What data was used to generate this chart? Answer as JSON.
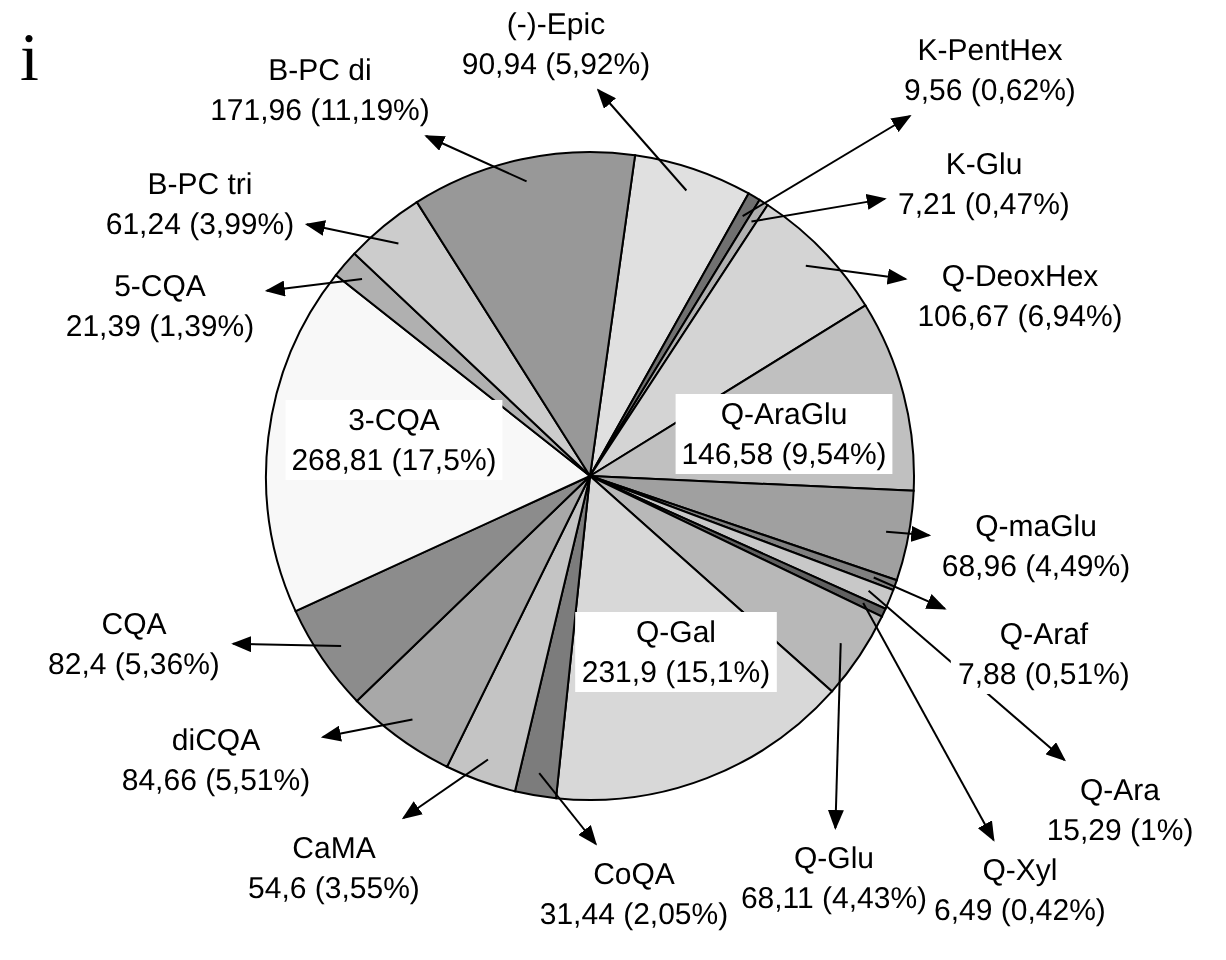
{
  "chart_data": {
    "type": "pie",
    "categories": [
      "(-)-Epic",
      "K-PentHex",
      "K-Glu",
      "Q-DeoxHex",
      "Q-AraGlu",
      "Q-maGlu",
      "Q-Araf",
      "Q-Ara",
      "Q-Xyl",
      "Q-Glu",
      "Q-Gal",
      "CoQA",
      "CaMA",
      "diCQA",
      "CQA",
      "3-CQA",
      "5-CQA",
      "B-PC tri",
      "B-PC di"
    ],
    "values": [
      90.94,
      9.56,
      7.21,
      106.67,
      146.58,
      68.96,
      7.88,
      15.29,
      6.49,
      68.11,
      231.9,
      31.44,
      54.6,
      84.66,
      82.4,
      268.81,
      21.39,
      61.24,
      171.96
    ],
    "value_labels": [
      "90,94 (5,92%)",
      "9,56 (0,62%)",
      "7,21 (0,47%)",
      "106,67 (6,94%)",
      "146,58 (9,54%)",
      "68,96 (4,49%)",
      "7,88 (0,51%)",
      "15,29 (1%)",
      "6,49 (0,42%)",
      "68,11 (4,43%)",
      "231,9 (15,1%)",
      "31,44 (2,05%)",
      "54,6 (3,55%)",
      "84,66 (5,51%)",
      "82,4 (5,36%)",
      "268,81 (17,5%)",
      "21,39 (1,39%)",
      "61,24 (3,99%)",
      "171,96 (11,19%)"
    ],
    "colors": [
      "#e0e0e0",
      "#707070",
      "#b0b0b0",
      "#d4d4d4",
      "#c0c0c0",
      "#a0a0a0",
      "#808080",
      "#c8c8c8",
      "#606060",
      "#b8b8b8",
      "#d8d8d8",
      "#7c7c7c",
      "#c4c4c4",
      "#a8a8a8",
      "#8c8c8c",
      "#f8f8f8",
      "#b0b0b0",
      "#cccccc",
      "#989898"
    ],
    "annotations": [
      "i"
    ]
  }
}
